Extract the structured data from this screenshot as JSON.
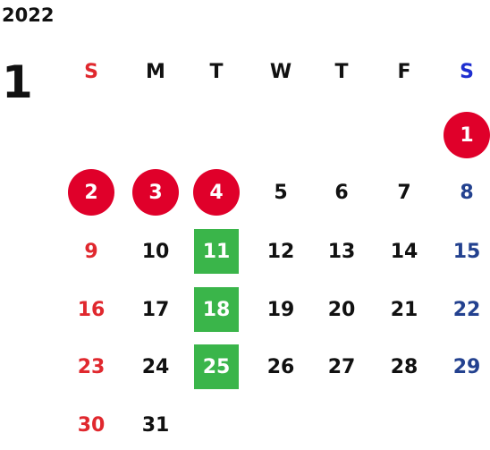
{
  "calendar": {
    "year": "2022",
    "month": "1",
    "weekday_labels": [
      "S",
      "M",
      "T",
      "W",
      "T",
      "F",
      "S"
    ],
    "weekday_colors": [
      "#e0282e",
      "#111111",
      "#111111",
      "#111111",
      "#111111",
      "#111111",
      "#1f2fd0"
    ],
    "first_weekday_index": 6,
    "days": [
      {
        "label": "1",
        "kind": "holiday"
      },
      {
        "label": "2",
        "kind": "holiday"
      },
      {
        "label": "3",
        "kind": "holiday"
      },
      {
        "label": "4",
        "kind": "holiday"
      },
      {
        "label": "5",
        "kind": "normal"
      },
      {
        "label": "6",
        "kind": "normal"
      },
      {
        "label": "7",
        "kind": "normal"
      },
      {
        "label": "8",
        "kind": "normal"
      },
      {
        "label": "9",
        "kind": "normal"
      },
      {
        "label": "10",
        "kind": "normal"
      },
      {
        "label": "11",
        "kind": "event"
      },
      {
        "label": "12",
        "kind": "normal"
      },
      {
        "label": "13",
        "kind": "normal"
      },
      {
        "label": "14",
        "kind": "normal"
      },
      {
        "label": "15",
        "kind": "normal"
      },
      {
        "label": "16",
        "kind": "normal"
      },
      {
        "label": "17",
        "kind": "normal"
      },
      {
        "label": "18",
        "kind": "event"
      },
      {
        "label": "19",
        "kind": "normal"
      },
      {
        "label": "20",
        "kind": "normal"
      },
      {
        "label": "21",
        "kind": "normal"
      },
      {
        "label": "22",
        "kind": "normal"
      },
      {
        "label": "23",
        "kind": "normal"
      },
      {
        "label": "24",
        "kind": "normal"
      },
      {
        "label": "25",
        "kind": "event"
      },
      {
        "label": "26",
        "kind": "normal"
      },
      {
        "label": "27",
        "kind": "normal"
      },
      {
        "label": "28",
        "kind": "normal"
      },
      {
        "label": "29",
        "kind": "normal"
      },
      {
        "label": "30",
        "kind": "normal"
      },
      {
        "label": "31",
        "kind": "normal"
      }
    ],
    "colors": {
      "holiday": "#e0002a",
      "event": "#3ab54a",
      "sunday": "#e0282e",
      "saturday": "#23418f",
      "text": "#111111"
    }
  }
}
